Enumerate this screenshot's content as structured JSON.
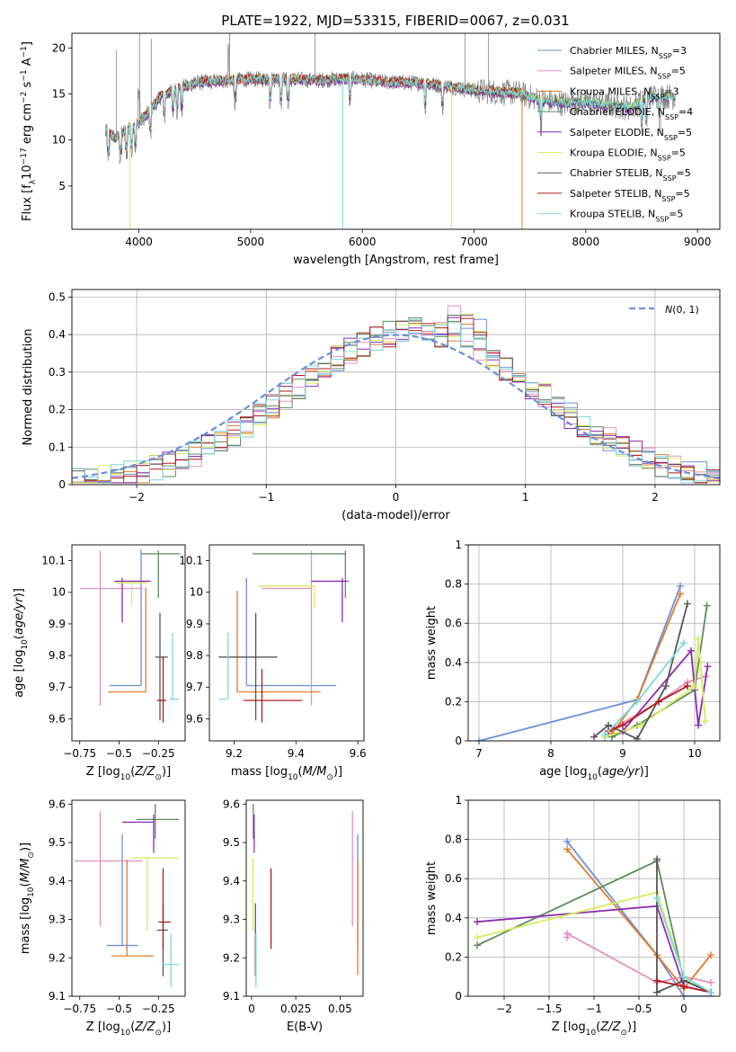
{
  "title": "PLATE=1922, MJD=53315, FIBERID=0067, z=0.031",
  "models": [
    {
      "name": "Chabrier MILES, N_SSP=3",
      "color": "#6a8fdd"
    },
    {
      "name": "Salpeter MILES, N_SSP=5",
      "color": "#e68fbd"
    },
    {
      "name": "Kroupa MILES, N_SSP=3",
      "color": "#e07b2a"
    },
    {
      "name": "Chabrier ELODIE, N_SSP=4",
      "color": "#5d8a5e"
    },
    {
      "name": "Salpeter ELODIE, N_SSP=5",
      "color": "#8e2ab3"
    },
    {
      "name": "Kroupa ELODIE, N_SSP=5",
      "color": "#d6ec5b"
    },
    {
      "name": "Chabrier STELIB, N_SSP=5",
      "color": "#555555"
    },
    {
      "name": "Salpeter STELIB, N_SSP=5",
      "color": "#b31b1b"
    },
    {
      "name": "Kroupa STELIB, N_SSP=5",
      "color": "#7fd8de"
    }
  ],
  "chart_data": [
    {
      "id": "spectrum",
      "type": "line",
      "xlabel": "wavelength [Angstrom, rest frame]",
      "ylabel": "Flux [f_λ10^-17 erg cm^-2 s^-1 A^-1]",
      "xlim": [
        3400,
        9200
      ],
      "ylim": [
        0.3,
        21.6
      ],
      "xticks": [
        4000,
        5000,
        6000,
        7000,
        8000,
        9000
      ],
      "yticks": [
        5,
        10,
        15,
        20
      ],
      "grid": false,
      "legend": "top-right",
      "legend_entries": [
        "Chabrier MILES, N_SSP=3",
        "Salpeter MILES, N_SSP=5",
        "Kroupa MILES, N_SSP=3",
        "Chabrier ELODIE, N_SSP=4",
        "Salpeter ELODIE, N_SSP=5",
        "Kroupa ELODIE, N_SSP=5",
        "Chabrier STELIB, N_SSP=5",
        "Salpeter STELIB, N_SSP=5",
        "Kroupa STELIB, N_SSP=5"
      ],
      "data_envelope": {
        "x": [
          3700,
          3800,
          3900,
          4000,
          4100,
          4200,
          4300,
          4500,
          4700,
          5000,
          5300,
          5600,
          5900,
          6200,
          6500,
          6800,
          7000,
          7200,
          7400,
          7600,
          7800,
          8000,
          8200,
          8400,
          8600,
          8800
        ],
        "y": [
          11,
          10.2,
          11.2,
          11.8,
          13.2,
          14.8,
          15.3,
          16.2,
          16.4,
          16.6,
          16.6,
          16.5,
          16.7,
          16.3,
          16.2,
          15.8,
          15.4,
          15.2,
          15.1,
          14.3,
          14.0,
          14.1,
          13.8,
          13.5,
          14.8,
          14.7
        ]
      }
    },
    {
      "id": "residuals",
      "type": "histogram",
      "xlabel": "(data-model)/error",
      "ylabel": "Normed distribution",
      "xlim": [
        -2.5,
        2.5
      ],
      "ylim": [
        0,
        0.52
      ],
      "xticks": [
        -2,
        -1,
        0,
        1,
        2
      ],
      "yticks": [
        0,
        0.1,
        0.2,
        0.3,
        0.4,
        0.5
      ],
      "grid": true,
      "legend": "top-right",
      "legend_entries": [
        "N(0,1)"
      ],
      "reference": {
        "name": "N(0,1)",
        "mean": 0,
        "sigma": 1,
        "color": "#6a8fdd"
      }
    },
    {
      "id": "age_vs_Z",
      "type": "errorbar",
      "xlabel": "Z [log10(Z/Z_sun)]",
      "ylabel": "age [log10(age/yr)]",
      "xlim": [
        -0.8,
        -0.08
      ],
      "ylim": [
        9.53,
        10.15
      ],
      "xticks": [
        -0.75,
        -0.5,
        -0.25
      ],
      "yticks": [
        9.6,
        9.7,
        9.8,
        9.9,
        10.0,
        10.1
      ],
      "grid": false,
      "points": [
        {
          "x": -0.36,
          "y": 9.705,
          "xerr": [
            0.2,
            0.0
          ],
          "yerr": [
            0.0,
            0.43
          ],
          "color": "#6a8fdd"
        },
        {
          "x": -0.62,
          "y": 10.012,
          "xerr": [
            0.13,
            0.27
          ],
          "yerr": [
            0.37,
            0.12
          ],
          "color": "#e68fbd"
        },
        {
          "x": -0.33,
          "y": 9.685,
          "xerr": [
            0.24,
            0.0
          ],
          "yerr": [
            0.0,
            0.33
          ],
          "color": "#e07b2a"
        },
        {
          "x": -0.25,
          "y": 10.122,
          "xerr": [
            0.11,
            0.14
          ],
          "yerr": [
            0.14,
            0.01
          ],
          "color": "#5d8a5e"
        },
        {
          "x": -0.48,
          "y": 10.035,
          "xerr": [
            0.05,
            0.18
          ],
          "yerr": [
            0.13,
            0.01
          ],
          "color": "#8e2ab3"
        },
        {
          "x": -0.42,
          "y": 10.03,
          "xerr": [
            0.1,
            0.1
          ],
          "yerr": [
            0.07,
            0.0
          ],
          "color": "#d6ec5b"
        },
        {
          "x": -0.24,
          "y": 9.795,
          "xerr": [
            0.03,
            0.05
          ],
          "yerr": [
            0.2,
            0.14
          ],
          "color": "#555555"
        },
        {
          "x": -0.22,
          "y": 9.658,
          "xerr": [
            0.04,
            0.02
          ],
          "yerr": [
            0.07,
            0.14
          ],
          "color": "#b31b1b"
        },
        {
          "x": -0.16,
          "y": 9.662,
          "xerr": [
            0.02,
            0.04
          ],
          "yerr": [
            0.0,
            0.21
          ],
          "color": "#7fd8de"
        }
      ]
    },
    {
      "id": "age_vs_mass",
      "type": "errorbar",
      "xlabel": "mass [log10(M/M_sun)]",
      "ylabel": "",
      "xlim": [
        9.12,
        9.62
      ],
      "ylim": [
        9.53,
        10.15
      ],
      "xticks": [
        9.2,
        9.4,
        9.6
      ],
      "yticks": [
        9.6,
        9.7,
        9.8,
        9.9,
        10.0,
        10.1
      ],
      "grid": false,
      "points": [
        {
          "x": 9.24,
          "y": 9.705,
          "xerr": [
            0.0,
            0.29
          ],
          "yerr": [
            0.0,
            0.34
          ],
          "color": "#6a8fdd"
        },
        {
          "x": 9.45,
          "y": 10.012,
          "xerr": [
            0.16,
            0.0
          ],
          "yerr": [
            0.37,
            0.12
          ],
          "color": "#e68fbd"
        },
        {
          "x": 9.21,
          "y": 9.685,
          "xerr": [
            0.0,
            0.27
          ],
          "yerr": [
            0.0,
            0.32
          ],
          "color": "#e07b2a"
        },
        {
          "x": 9.56,
          "y": 10.122,
          "xerr": [
            0.3,
            0.0
          ],
          "yerr": [
            0.14,
            0.01
          ],
          "color": "#5d8a5e"
        },
        {
          "x": 9.55,
          "y": 10.035,
          "xerr": [
            0.1,
            0.02
          ],
          "yerr": [
            0.13,
            0.01
          ],
          "color": "#8e2ab3"
        },
        {
          "x": 9.46,
          "y": 10.02,
          "xerr": [
            0.18,
            0.0
          ],
          "yerr": [
            0.07,
            0.0
          ],
          "color": "#d6ec5b"
        },
        {
          "x": 9.27,
          "y": 9.795,
          "xerr": [
            0.12,
            0.07
          ],
          "yerr": [
            0.2,
            0.14
          ],
          "color": "#555555"
        },
        {
          "x": 9.29,
          "y": 9.658,
          "xerr": [
            0.06,
            0.13
          ],
          "yerr": [
            0.07,
            0.1
          ],
          "color": "#b31b1b"
        },
        {
          "x": 9.18,
          "y": 9.662,
          "xerr": [
            0.03,
            0.0
          ],
          "yerr": [
            0.0,
            0.21
          ],
          "color": "#7fd8de"
        }
      ]
    },
    {
      "id": "weight_vs_age",
      "type": "line",
      "xlabel": "age [log10(age/yr)]",
      "ylabel": "mass weight",
      "xlim": [
        6.85,
        10.35
      ],
      "ylim": [
        0,
        1.0
      ],
      "xticks": [
        7,
        8,
        9,
        10
      ],
      "yticks": [
        0,
        0.2,
        0.4,
        0.6,
        0.8,
        1.0
      ],
      "grid": true,
      "series": [
        {
          "color": "#6a8fdd",
          "x": [
            7.0,
            9.2,
            9.8
          ],
          "y": [
            0.0,
            0.21,
            0.79
          ]
        },
        {
          "color": "#e68fbd",
          "x": [
            8.9,
            9.5,
            9.9,
            10.15
          ],
          "y": [
            0.07,
            0.2,
            0.3,
            0.33
          ]
        },
        {
          "color": "#e07b2a",
          "x": [
            8.85,
            9.2,
            9.8
          ],
          "y": [
            0.04,
            0.21,
            0.75
          ]
        },
        {
          "color": "#5d8a5e",
          "x": [
            8.85,
            9.2,
            10.0,
            10.17
          ],
          "y": [
            0.02,
            0.08,
            0.26,
            0.69
          ]
        },
        {
          "color": "#8e2ab3",
          "x": [
            8.75,
            9.0,
            9.95,
            10.05,
            10.18
          ],
          "y": [
            0.02,
            0.05,
            0.46,
            0.08,
            0.38
          ]
        },
        {
          "color": "#d6ec5b",
          "x": [
            8.75,
            9.25,
            10.0,
            10.05,
            10.15
          ],
          "y": [
            0.02,
            0.08,
            0.28,
            0.52,
            0.1
          ]
        },
        {
          "color": "#555555",
          "x": [
            8.6,
            8.8,
            9.2,
            9.6,
            9.9
          ],
          "y": [
            0.02,
            0.08,
            0.01,
            0.28,
            0.7
          ]
        },
        {
          "color": "#b31b1b",
          "x": [
            8.8,
            9.0,
            9.5,
            9.9
          ],
          "y": [
            0.05,
            0.08,
            0.2,
            0.28
          ]
        },
        {
          "color": "#7fd8de",
          "x": [
            8.75,
            9.2,
            9.85
          ],
          "y": [
            0.03,
            0.2,
            0.5
          ]
        }
      ]
    },
    {
      "id": "mass_vs_Z",
      "type": "errorbar",
      "xlabel": "Z [log10(Z/Z_sun)]",
      "ylabel": "mass [log10(M/M_sun)]",
      "xlim": [
        -0.8,
        -0.08
      ],
      "ylim": [
        9.1,
        9.61
      ],
      "xticks": [
        -0.75,
        -0.5,
        -0.25
      ],
      "yticks": [
        9.1,
        9.2,
        9.3,
        9.4,
        9.5,
        9.6
      ],
      "grid": false,
      "points": [
        {
          "x": -0.48,
          "y": 9.232,
          "xerr": [
            0.1,
            0.1
          ],
          "yerr": [
            0.0,
            0.29
          ],
          "color": "#6a8fdd"
        },
        {
          "x": -0.62,
          "y": 9.452,
          "xerr": [
            0.16,
            0.27
          ],
          "yerr": [
            0.17,
            0.13
          ],
          "color": "#e68fbd"
        },
        {
          "x": -0.45,
          "y": 9.205,
          "xerr": [
            0.1,
            0.17
          ],
          "yerr": [
            0.0,
            0.25
          ],
          "color": "#e07b2a"
        },
        {
          "x": -0.27,
          "y": 9.56,
          "xerr": [
            0.12,
            0.15
          ],
          "yerr": [
            0.05,
            0.04
          ],
          "color": "#5d8a5e"
        },
        {
          "x": -0.28,
          "y": 9.553,
          "xerr": [
            0.2,
            0.0
          ],
          "yerr": [
            0.08,
            0.02
          ],
          "color": "#8e2ab3"
        },
        {
          "x": -0.32,
          "y": 9.46,
          "xerr": [
            0.1,
            0.2
          ],
          "yerr": [
            0.19,
            0.0
          ],
          "color": "#d6ec5b"
        },
        {
          "x": -0.22,
          "y": 9.272,
          "xerr": [
            0.04,
            0.03
          ],
          "yerr": [
            0.12,
            0.07
          ],
          "color": "#555555"
        },
        {
          "x": -0.22,
          "y": 9.293,
          "xerr": [
            0.03,
            0.05
          ],
          "yerr": [
            0.07,
            0.14
          ],
          "color": "#b31b1b"
        },
        {
          "x": -0.17,
          "y": 9.183,
          "xerr": [
            0.06,
            0.05
          ],
          "yerr": [
            0.06,
            0.08
          ],
          "color": "#7fd8de"
        }
      ]
    },
    {
      "id": "mass_vs_ebv",
      "type": "errorbar",
      "xlabel": "E(B-V)",
      "ylabel": "",
      "xlim": [
        -0.003,
        0.063
      ],
      "ylim": [
        9.1,
        9.61
      ],
      "xticks": [
        0.0,
        0.025,
        0.05
      ],
      "yticks": [
        9.1,
        9.2,
        9.3,
        9.4,
        9.5,
        9.6
      ],
      "grid": false,
      "points": [
        {
          "x": 0.06,
          "y": 9.232,
          "xerr": [
            0,
            0
          ],
          "yerr": [
            0.0,
            0.29
          ],
          "color": "#6a8fdd"
        },
        {
          "x": 0.057,
          "y": 9.452,
          "xerr": [
            0,
            0
          ],
          "yerr": [
            0.17,
            0.13
          ],
          "color": "#e68fbd"
        },
        {
          "x": 0.06,
          "y": 9.205,
          "xerr": [
            0,
            0
          ],
          "yerr": [
            0.05,
            0.25
          ],
          "color": "#e07b2a"
        },
        {
          "x": 0.001,
          "y": 9.56,
          "xerr": [
            0,
            0
          ],
          "yerr": [
            0.05,
            0.04
          ],
          "color": "#5d8a5e"
        },
        {
          "x": 0.0015,
          "y": 9.553,
          "xerr": [
            0,
            0
          ],
          "yerr": [
            0.08,
            0.02
          ],
          "color": "#8e2ab3"
        },
        {
          "x": 0.0008,
          "y": 9.46,
          "xerr": [
            0,
            0
          ],
          "yerr": [
            0.19,
            0.0
          ],
          "color": "#d6ec5b"
        },
        {
          "x": 0.0022,
          "y": 9.272,
          "xerr": [
            0,
            0
          ],
          "yerr": [
            0.12,
            0.07
          ],
          "color": "#555555"
        },
        {
          "x": 0.011,
          "y": 9.293,
          "xerr": [
            0,
            0
          ],
          "yerr": [
            0.07,
            0.14
          ],
          "color": "#b31b1b"
        },
        {
          "x": 0.0025,
          "y": 9.183,
          "xerr": [
            0,
            0
          ],
          "yerr": [
            0.06,
            0.08
          ],
          "color": "#7fd8de"
        }
      ]
    },
    {
      "id": "weight_vs_Z",
      "type": "line",
      "xlabel": "Z [log10(Z/Z_sun)]",
      "ylabel": "mass weight",
      "xlim": [
        -2.4,
        0.4
      ],
      "ylim": [
        0,
        1.0
      ],
      "xticks": [
        -2.0,
        -1.5,
        -1.0,
        -0.5,
        0.0
      ],
      "yticks": [
        0,
        0.2,
        0.4,
        0.6,
        0.8,
        1.0
      ],
      "grid": true,
      "series": [
        {
          "color": "#6a8fdd",
          "x": [
            -1.3,
            -0.3,
            0.0,
            0.3
          ],
          "y": [
            0.79,
            0.21,
            0.0,
            0.0
          ]
        },
        {
          "color": "#e68fbd",
          "x": [
            -1.3,
            -1.3,
            -0.3,
            0.0,
            0.3
          ],
          "y": [
            0.3,
            0.32,
            0.07,
            0.1,
            0.07
          ]
        },
        {
          "color": "#e07b2a",
          "x": [
            -1.3,
            -0.3,
            0.0,
            0.3
          ],
          "y": [
            0.75,
            0.21,
            0.04,
            0.21
          ]
        },
        {
          "color": "#5d8a5e",
          "x": [
            -2.3,
            -0.3,
            0.0,
            0.3
          ],
          "y": [
            0.26,
            0.69,
            0.08,
            0.02
          ]
        },
        {
          "color": "#8e2ab3",
          "x": [
            -2.3,
            -0.3,
            0.0,
            0.3
          ],
          "y": [
            0.38,
            0.46,
            0.05,
            0.02
          ]
        },
        {
          "color": "#d6ec5b",
          "x": [
            -2.3,
            -0.3,
            0.0,
            0.3
          ],
          "y": [
            0.3,
            0.53,
            0.1,
            0.02
          ]
        },
        {
          "color": "#555555",
          "x": [
            -0.3,
            -0.3,
            0.0,
            0.3
          ],
          "y": [
            0.7,
            0.02,
            0.08,
            0.02
          ]
        },
        {
          "color": "#b31b1b",
          "x": [
            -0.3,
            0.0,
            0.3
          ],
          "y": [
            0.08,
            0.05,
            0.02
          ]
        },
        {
          "color": "#7fd8de",
          "x": [
            -0.3,
            0.0,
            0.3
          ],
          "y": [
            0.5,
            0.1,
            0.02
          ]
        }
      ]
    }
  ]
}
